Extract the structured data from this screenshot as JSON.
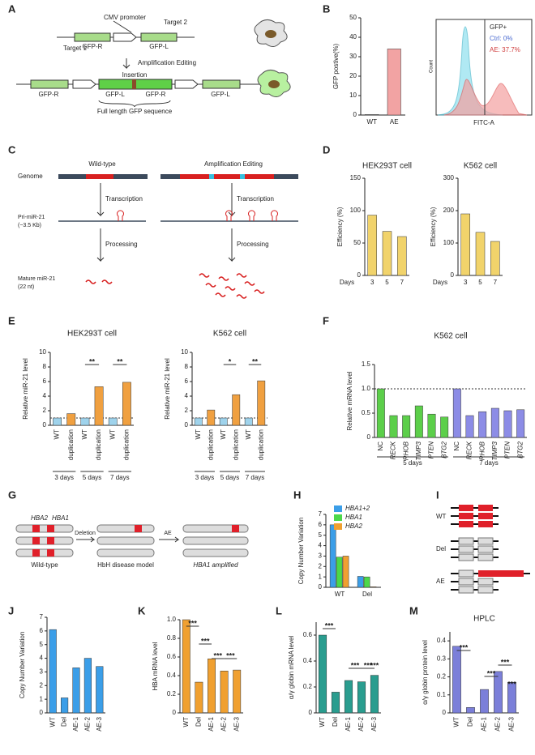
{
  "panel_labels": [
    "A",
    "B",
    "C",
    "D",
    "E",
    "F",
    "G",
    "H",
    "I",
    "J",
    "K",
    "L",
    "M"
  ],
  "panel_a": {
    "cmv": "CMV promoter",
    "target1": "Target 1",
    "target2": "Target 2",
    "gfp_r": "GFP-R",
    "gfp_l": "GFP-L",
    "step": "Amplification Editing",
    "insertion": "Insertion",
    "full": "Full length GFP sequence"
  },
  "panel_b_flow": {
    "gate": "GFP+",
    "ctrl": "Ctrl: 0%",
    "ae": "AE: 37.7%",
    "x_label": "FITC-A",
    "y_label": "Count"
  },
  "panel_c": {
    "wt": "Wild-type",
    "ae": "Amplification Editing",
    "genome": "Genome",
    "transcription": "Transcription",
    "pri": "Pri-miR-21",
    "pri_size": "(~3.5 Kb)",
    "processing": "Processing",
    "mature": "Mature miR-21",
    "mature_size": "(22 nt)"
  },
  "panel_g": {
    "hba2": "HBA2",
    "hba1": "HBA1",
    "deletion": "Deletion",
    "ae": "AE",
    "wt": "Wild-type",
    "hbh": "HbH disease model",
    "amplified": "HBA1 amplified"
  },
  "panel_i": {
    "wt": "WT",
    "del": "Del",
    "ae": "AE"
  },
  "chart_data": [
    {
      "type": "bar",
      "y_label": "GFP postive(%)",
      "categories": [
        "WT",
        "AE"
      ],
      "values": [
        0.3,
        34
      ],
      "colors": [
        "#d9d9d9",
        "#f2a3a3"
      ],
      "ylim": [
        0,
        50
      ],
      "yticks": [
        0,
        10,
        20,
        30,
        40,
        50
      ]
    },
    {
      "type": "bar",
      "title": "HEK293T cell",
      "y_label": "Efficiency (%)",
      "x_label": "Days",
      "categories": [
        "3",
        "5",
        "7"
      ],
      "values": [
        93,
        68,
        60
      ],
      "color": "#f1d36b",
      "ylim": [
        0,
        150
      ],
      "yticks": [
        0,
        50,
        100,
        150
      ]
    },
    {
      "type": "bar",
      "title": "K562 cell",
      "y_label": "Efficiency (%)",
      "x_label": "Days",
      "categories": [
        "3",
        "5",
        "7"
      ],
      "values": [
        190,
        133,
        105
      ],
      "color": "#f1d36b",
      "ylim": [
        0,
        300
      ],
      "yticks": [
        0,
        100,
        200,
        300
      ]
    },
    {
      "type": "bar",
      "title": "HEK293T cell",
      "y_label": "Relative miR-21 level",
      "categories": [
        "WT",
        "duplication",
        "WT",
        "duplication",
        "WT",
        "duplication"
      ],
      "values": [
        1,
        1.6,
        1,
        5.3,
        1,
        5.9
      ],
      "colors": [
        "#9fd3ec",
        "#f0a040",
        "#9fd3ec",
        "#f0a040",
        "#9fd3ec",
        "#f0a040"
      ],
      "groups": [
        "3 days",
        "5 days",
        "7 days"
      ],
      "annotations": [
        "**",
        "**"
      ],
      "hline": 1,
      "ylim": [
        0,
        10
      ],
      "yticks": [
        0,
        2,
        4,
        6,
        8,
        10
      ]
    },
    {
      "type": "bar",
      "title": "K562 cell",
      "y_label": "Relative miR-21 level",
      "categories": [
        "WT",
        "duplication",
        "WT",
        "duplication",
        "WT",
        "duplication"
      ],
      "values": [
        1,
        2.1,
        1,
        4.2,
        1,
        6.1
      ],
      "colors": [
        "#9fd3ec",
        "#f0a040",
        "#9fd3ec",
        "#f0a040",
        "#9fd3ec",
        "#f0a040"
      ],
      "groups": [
        "3 days",
        "5 days",
        "7 days"
      ],
      "annotations": [
        "*",
        "**"
      ],
      "hline": 1,
      "ylim": [
        0,
        10
      ],
      "yticks": [
        0,
        2,
        4,
        6,
        8,
        10
      ]
    },
    {
      "type": "bar",
      "title": "K562 cell",
      "y_label": "Relative mRNA level",
      "categories": [
        "NC",
        "RECK",
        "RHOB",
        "TIMP3",
        "PTEN",
        "BTG2",
        "NC",
        "RECK",
        "RHOB",
        "TIMP3",
        "PTEN",
        "BTG2"
      ],
      "values": [
        1,
        0.45,
        0.45,
        0.65,
        0.48,
        0.42,
        1,
        0.45,
        0.53,
        0.6,
        0.55,
        0.57
      ],
      "colors": [
        "#5ccf4a",
        "#5ccf4a",
        "#5ccf4a",
        "#5ccf4a",
        "#5ccf4a",
        "#5ccf4a",
        "#8c8ce6",
        "#8c8ce6",
        "#8c8ce6",
        "#8c8ce6",
        "#8c8ce6",
        "#8c8ce6"
      ],
      "groups": [
        "5 days",
        "7 days"
      ],
      "hline": 1,
      "ylim": [
        0,
        1.5
      ],
      "yticks": [
        0,
        0.5,
        {
          "value": 1,
          "label": "1.0"
        },
        1.5
      ]
    },
    {
      "type": "bar",
      "y_label": "Copy Number Variation",
      "categories": [
        "WT",
        "Del"
      ],
      "series": [
        {
          "name": "HBA1+2",
          "color": "#3b9ee8",
          "values": [
            6,
            1.05
          ]
        },
        {
          "name": "HBA1",
          "color": "#4cd84a",
          "values": [
            2.9,
            1
          ]
        },
        {
          "name": "HBA2",
          "color": "#f0a030",
          "values": [
            3,
            0.05
          ]
        }
      ],
      "ylim": [
        0,
        7
      ],
      "yticks": [
        0,
        1,
        2,
        3,
        4,
        5,
        6,
        7
      ]
    },
    {
      "type": "bar",
      "y_label": "Copy Number Variation",
      "categories": [
        "WT",
        "Del",
        "AE-1",
        "AE-2",
        "AE-3"
      ],
      "values": [
        6.1,
        1.1,
        3.3,
        4,
        3.4
      ],
      "color": "#3b9ee8",
      "ylim": [
        0,
        7
      ],
      "yticks": [
        0,
        1,
        2,
        3,
        4,
        5,
        6,
        7
      ]
    },
    {
      "type": "bar",
      "y_label": "HBA mRNA level",
      "categories": [
        "WT",
        "Del",
        "AE-1",
        "AE-2",
        "AE-3"
      ],
      "values": [
        1,
        0.33,
        0.58,
        0.45,
        0.46
      ],
      "color": "#f0a030",
      "annotations": [
        "***",
        "***",
        "***",
        "***"
      ],
      "ylim": [
        0,
        1
      ],
      "yticks": [
        0,
        0.2,
        0.4,
        0.6,
        0.8,
        {
          "value": 1,
          "label": "1.0"
        }
      ]
    },
    {
      "type": "bar",
      "y_label": "α/γ globin mRNA level",
      "categories": [
        "WT",
        "Del",
        "AE-1",
        "AE-2",
        "AE-3"
      ],
      "values": [
        0.6,
        0.16,
        0.25,
        0.24,
        0.29
      ],
      "color": "#2a9d8f",
      "annotations": [
        "***",
        "***",
        "***",
        "***"
      ],
      "ylim": [
        0,
        0.7
      ],
      "yticks": [
        0,
        0.2,
        0.4,
        0.6
      ]
    },
    {
      "type": "bar",
      "title": "HPLC",
      "y_label": "α/γ globin protein level",
      "categories": [
        "WT",
        "Del",
        "AE-1",
        "AE-2",
        "AE-3"
      ],
      "values": [
        0.37,
        0.03,
        0.13,
        0.23,
        0.17
      ],
      "color": "#7b7fd9",
      "annotations": [
        "***",
        "***",
        "***",
        "***"
      ],
      "ylim": [
        0,
        0.45
      ],
      "yticks": [
        0,
        0.1,
        0.2,
        0.3,
        0.4
      ]
    }
  ]
}
